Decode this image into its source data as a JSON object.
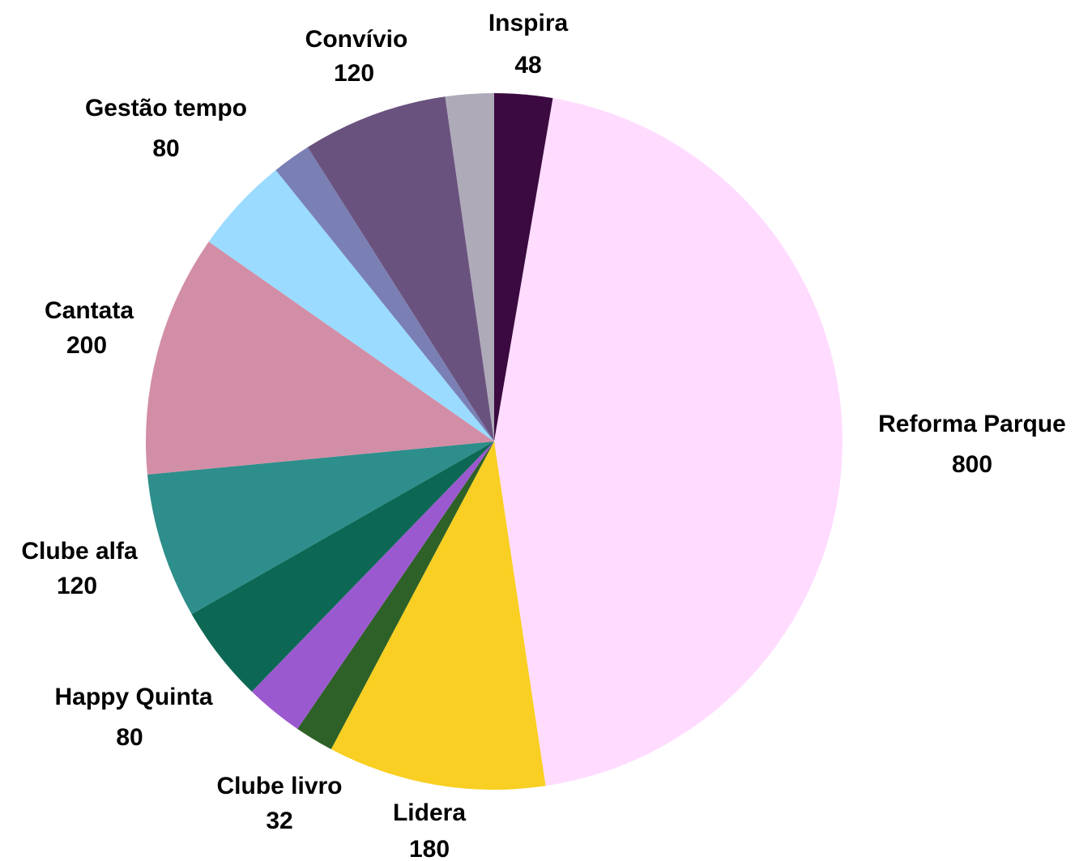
{
  "chart_data": {
    "type": "pie",
    "categories": [
      "Inspira",
      "Reforma Parque",
      "Lidera",
      "Clube livro",
      null,
      "Happy Quinta",
      "Clube alfa",
      "Cantata",
      "Gestão tempo",
      null,
      "Convívio",
      null
    ],
    "values": [
      48,
      800,
      180,
      32,
      48,
      80,
      120,
      200,
      80,
      32,
      120,
      40
    ],
    "colors": [
      "#3b0a40",
      "#ffdcff",
      "#f8cf22",
      "#2e6127",
      "#9b59cf",
      "#0c6854",
      "#2e8e8b",
      "#d28ea6",
      "#9adbff",
      "#7a80b4",
      "#6a527f",
      "#aeaab8"
    ]
  }
}
